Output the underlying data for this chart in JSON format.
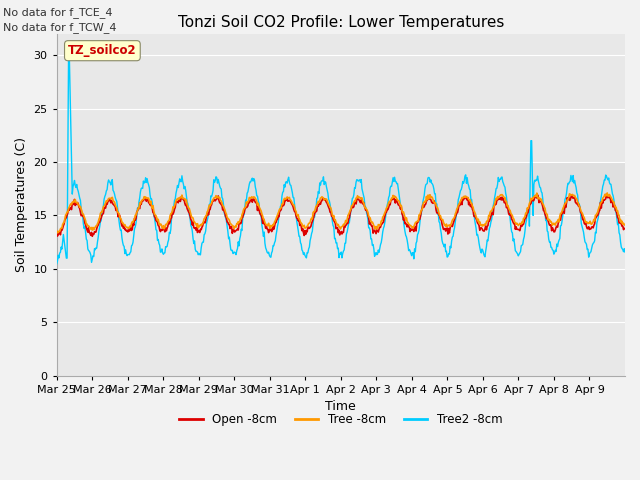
{
  "title": "Tonzi Soil CO2 Profile: Lower Temperatures",
  "xlabel": "Time",
  "ylabel": "Soil Temperatures (C)",
  "annotation_lines": [
    "No data for f_TCE_4",
    "No data for f_TCW_4"
  ],
  "legend_label": "TZ_soilco2",
  "series_labels": [
    "Open -8cm",
    "Tree -8cm",
    "Tree2 -8cm"
  ],
  "series_colors": [
    "#dd0000",
    "#ff9900",
    "#00ccff"
  ],
  "ylim": [
    0,
    32
  ],
  "yticks": [
    0,
    5,
    10,
    15,
    20,
    25,
    30
  ],
  "n_days": 16,
  "title_fontsize": 11,
  "axis_label_fontsize": 9,
  "tick_fontsize": 8
}
